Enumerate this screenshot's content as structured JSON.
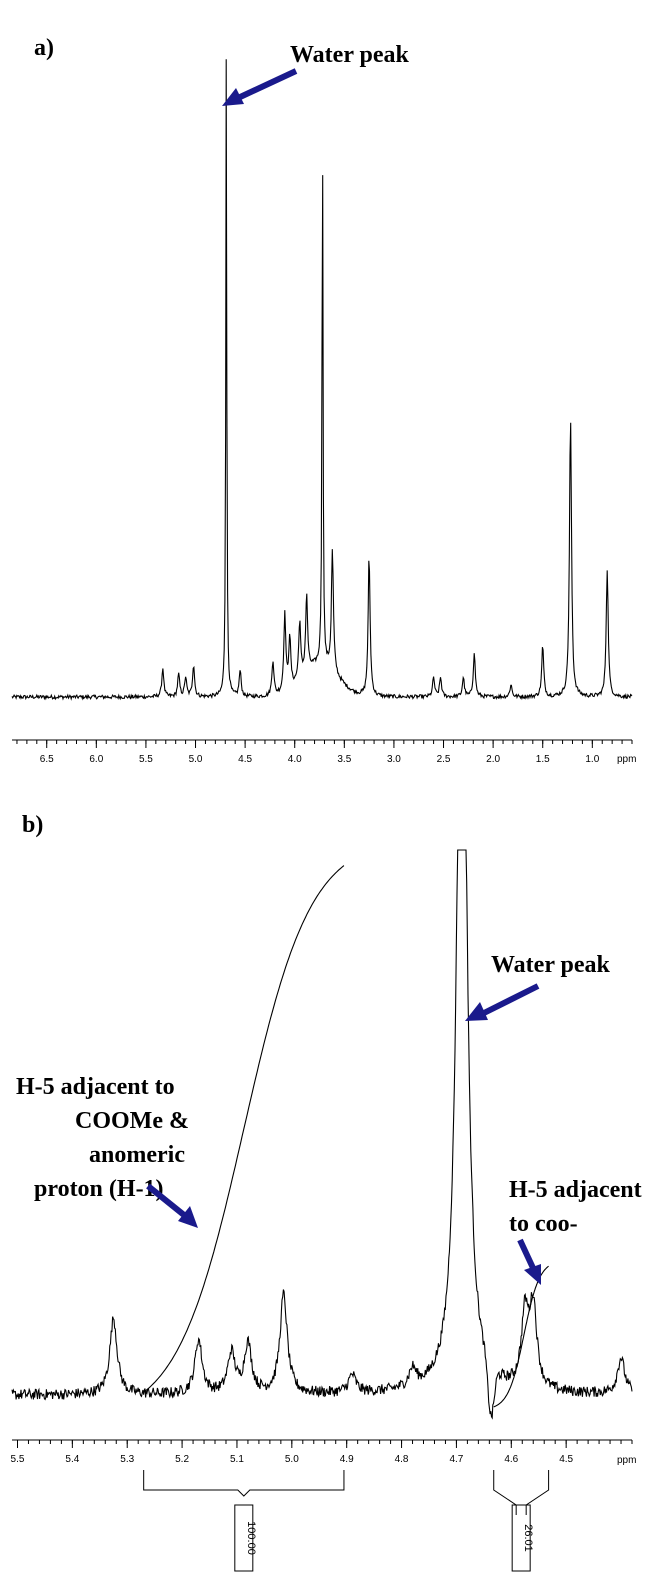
{
  "chart_data": [
    {
      "type": "line",
      "panel_label": "a)",
      "xlabel": "ppm",
      "xlim": [
        6.85,
        0.6
      ],
      "x_ticks": [
        "6.5",
        "6.0",
        "5.5",
        "5.0",
        "4.5",
        "4.0",
        "3.5",
        "3.0",
        "2.5",
        "2.0",
        "1.5",
        "1.0"
      ],
      "x_tick_values": [
        6.5,
        6.0,
        5.5,
        5.0,
        4.5,
        4.0,
        3.5,
        3.0,
        2.5,
        2.0,
        1.5,
        1.0
      ],
      "peaks": [
        {
          "ppm": 5.33,
          "height": 0.045
        },
        {
          "ppm": 5.17,
          "height": 0.035
        },
        {
          "ppm": 5.1,
          "height": 0.03
        },
        {
          "ppm": 5.02,
          "height": 0.05
        },
        {
          "ppm": 4.69,
          "height": 1.0
        },
        {
          "ppm": 4.55,
          "height": 0.04
        },
        {
          "ppm": 4.22,
          "height": 0.055
        },
        {
          "ppm": 4.1,
          "height": 0.12
        },
        {
          "ppm": 4.05,
          "height": 0.08
        },
        {
          "ppm": 3.95,
          "height": 0.09
        },
        {
          "ppm": 3.88,
          "height": 0.12
        },
        {
          "ppm": 3.72,
          "height": 0.84
        },
        {
          "ppm": 3.62,
          "height": 0.19
        },
        {
          "ppm": 3.25,
          "height": 0.22
        },
        {
          "ppm": 2.6,
          "height": 0.03
        },
        {
          "ppm": 2.53,
          "height": 0.03
        },
        {
          "ppm": 2.3,
          "height": 0.03
        },
        {
          "ppm": 2.19,
          "height": 0.07
        },
        {
          "ppm": 1.82,
          "height": 0.02
        },
        {
          "ppm": 1.5,
          "height": 0.08
        },
        {
          "ppm": 1.22,
          "height": 0.44
        },
        {
          "ppm": 0.85,
          "height": 0.2
        }
      ],
      "annotations": [
        {
          "text": "Water peak",
          "ppm": 4.69
        }
      ]
    },
    {
      "type": "line",
      "panel_label": "b)",
      "xlabel": "ppm",
      "xlim": [
        5.51,
        4.38
      ],
      "x_ticks": [
        "5.5",
        "5.4",
        "5.3",
        "5.2",
        "5.1",
        "5.0",
        "4.9",
        "4.8",
        "4.7",
        "4.6",
        "4.5"
      ],
      "x_tick_values": [
        5.5,
        5.4,
        5.3,
        5.2,
        5.1,
        5.0,
        4.9,
        4.8,
        4.7,
        4.6,
        4.5
      ],
      "peaks": [
        {
          "ppm": 5.325,
          "height": 0.085
        },
        {
          "ppm": 5.17,
          "height": 0.06
        },
        {
          "ppm": 5.11,
          "height": 0.045
        },
        {
          "ppm": 5.08,
          "height": 0.055
        },
        {
          "ppm": 5.015,
          "height": 0.11
        },
        {
          "ppm": 4.89,
          "height": 0.02
        },
        {
          "ppm": 4.78,
          "height": 0.02
        },
        {
          "ppm": 4.69,
          "height": 1.0
        },
        {
          "ppm": 4.575,
          "height": 0.08
        },
        {
          "ppm": 4.56,
          "height": 0.09
        },
        {
          "ppm": 4.4,
          "height": 0.04
        }
      ],
      "integrals": [
        {
          "from_ppm": 5.27,
          "to_ppm": 4.905,
          "value": "100.00"
        },
        {
          "from_ppm": 4.632,
          "to_ppm": 4.532,
          "value": "26.01"
        }
      ],
      "annotations": [
        {
          "text_lines": [
            "Water peak"
          ],
          "ppm": 4.685
        },
        {
          "text_lines": [
            "H-5 adjacent to",
            "COOMe &",
            "anomeric",
            "proton (H-1)"
          ],
          "ppm": 5.18
        },
        {
          "text_lines": [
            "H-5 adjacent",
            "to coo-"
          ],
          "ppm": 4.55
        }
      ]
    }
  ]
}
